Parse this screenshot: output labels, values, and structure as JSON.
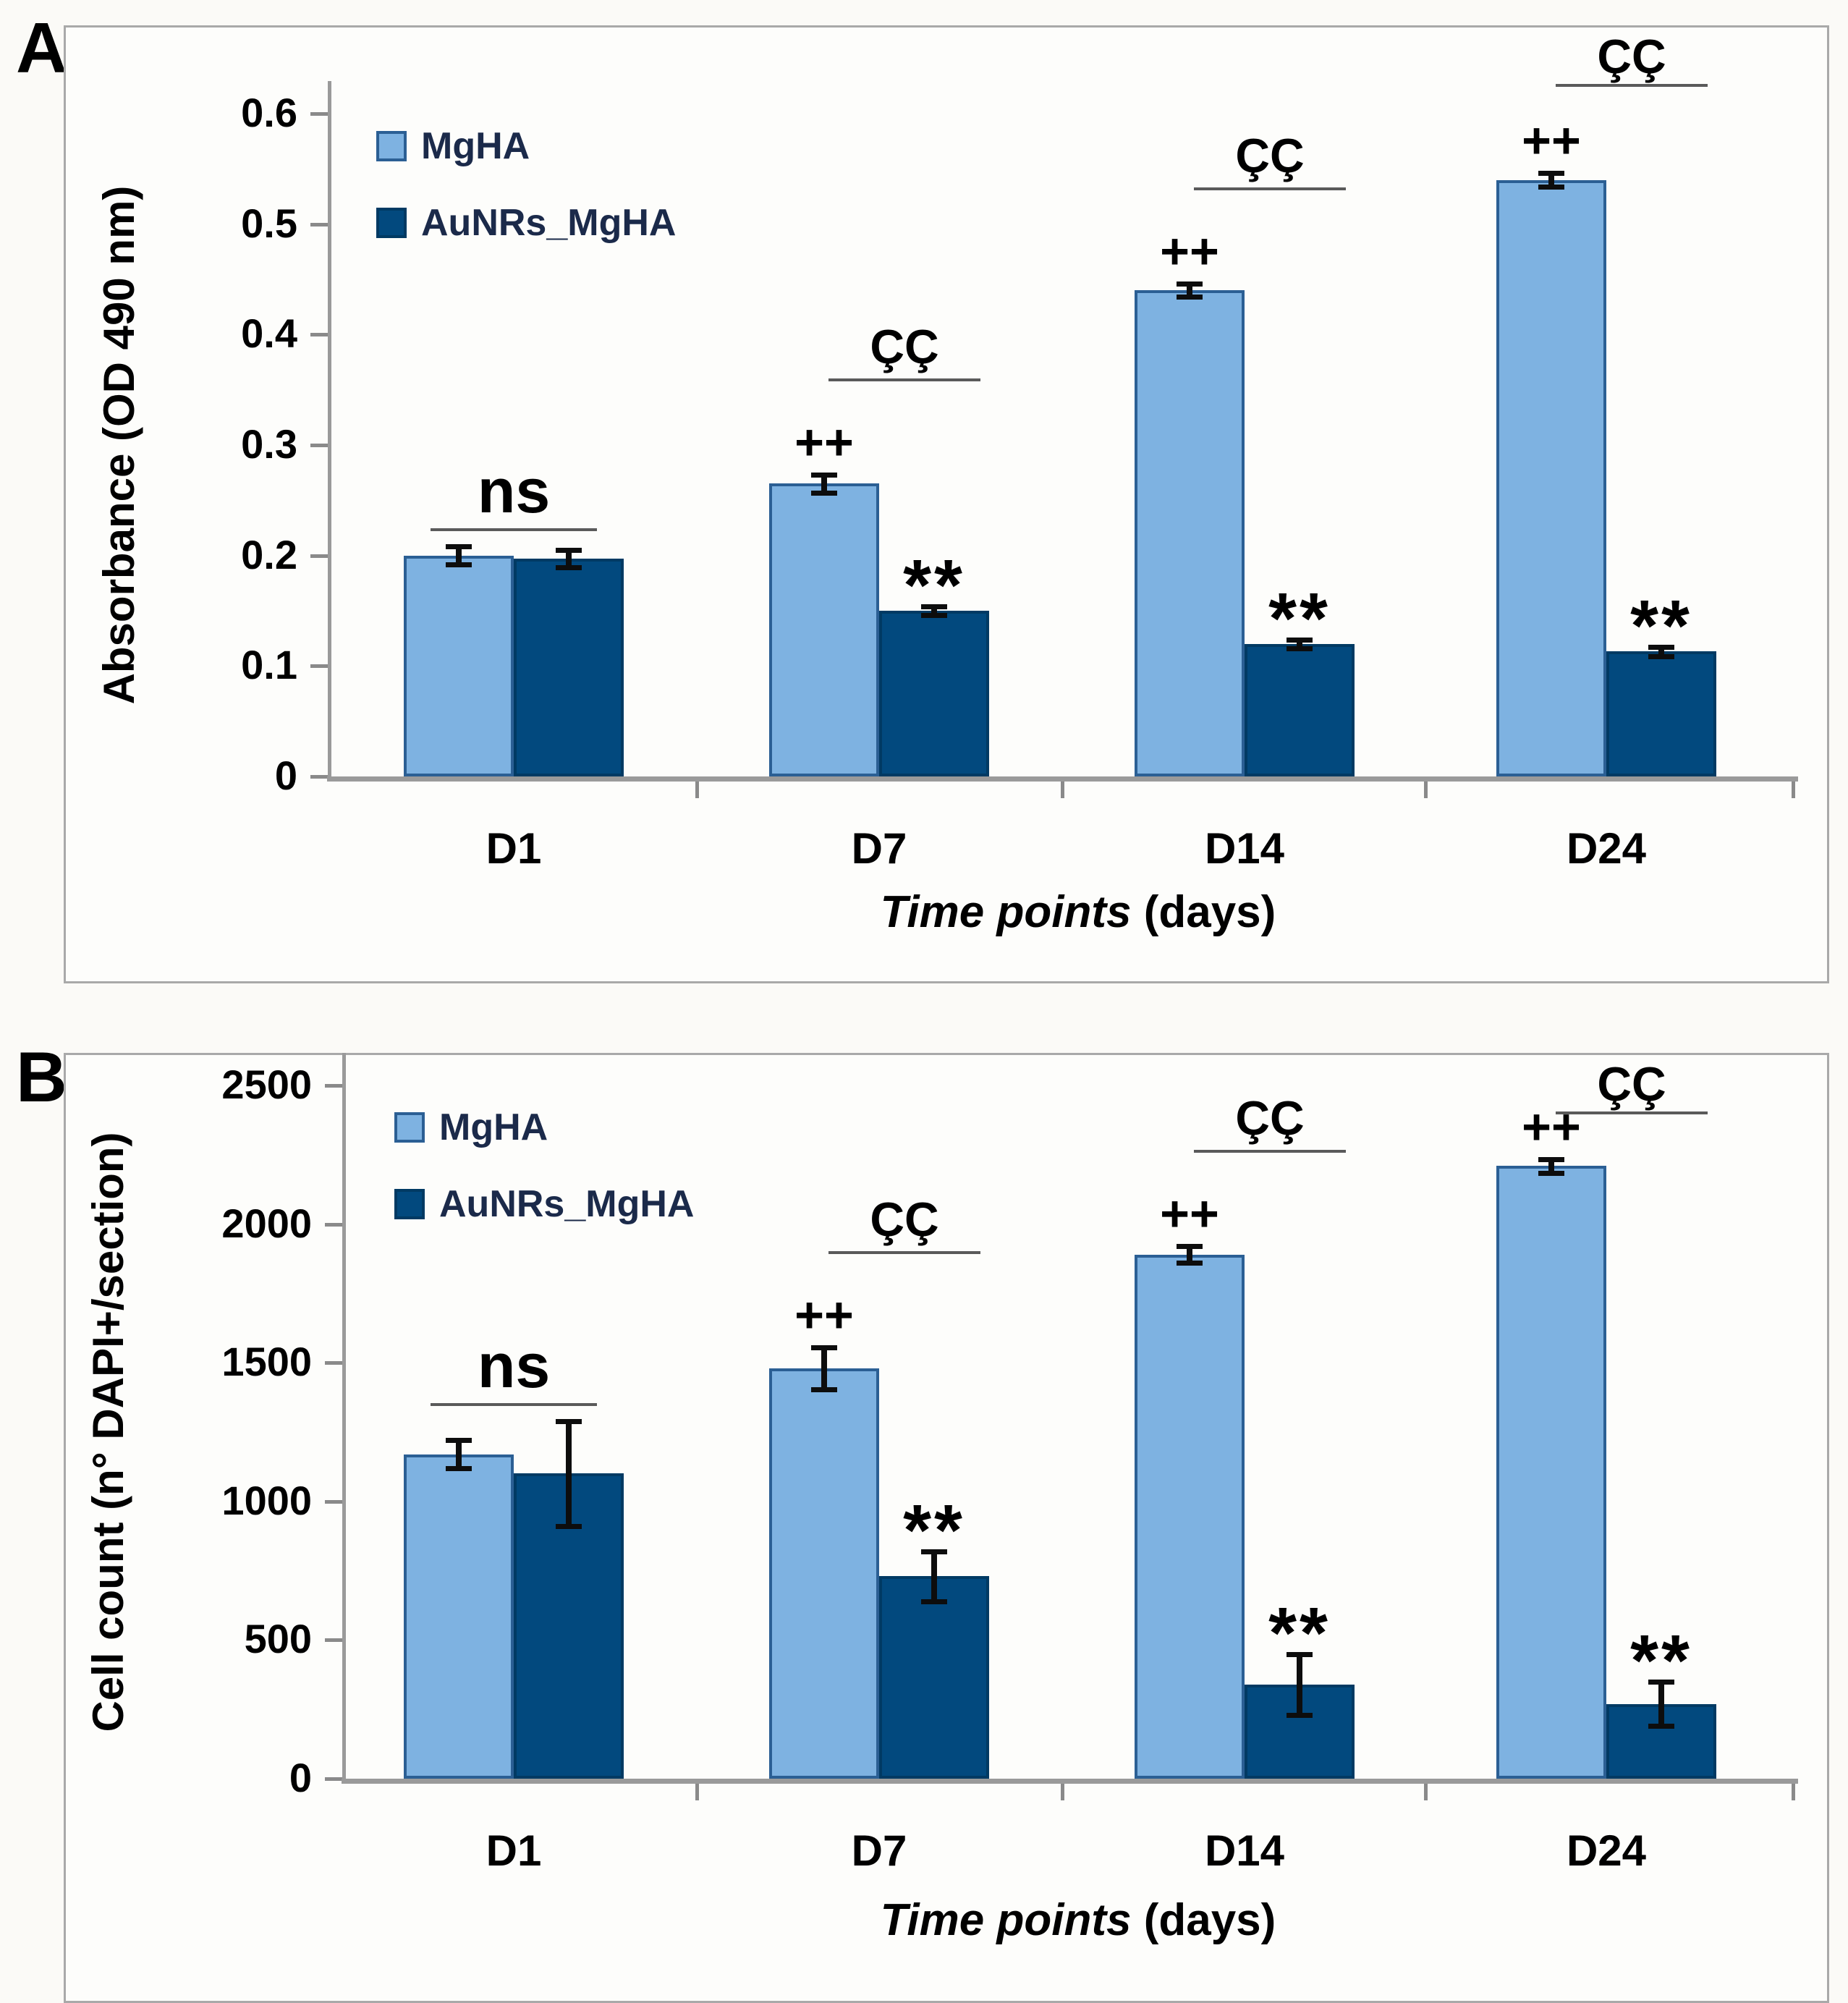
{
  "figure": {
    "panel_a_label": "A",
    "panel_b_label": "B"
  },
  "colors": {
    "series_light_fill": "#7eb2e1",
    "series_light_border": "#2b5f94",
    "series_dark_fill": "#02497e",
    "series_dark_border": "#013a63",
    "axis_gray": "#9a9a9a",
    "frame_gray": "#a9a9a9",
    "text_black": "#000000",
    "legend_text": "#1b2a4a"
  },
  "chart_data": [
    {
      "id": "A",
      "type": "bar",
      "title": "",
      "categories": [
        "D1",
        "D7",
        "D14",
        "D24"
      ],
      "series": [
        {
          "name": "MgHA",
          "values": [
            0.2,
            0.265,
            0.44,
            0.54
          ],
          "errors": [
            0.008,
            0.008,
            0.006,
            0.006
          ]
        },
        {
          "name": "AuNRs_MgHA",
          "values": [
            0.197,
            0.15,
            0.12,
            0.113
          ],
          "errors": [
            0.008,
            0.004,
            0.004,
            0.004
          ]
        }
      ],
      "ylabel": "Absorbance  (OD 490 nm)",
      "xlabel_italic": "Time points",
      "xlabel_regular": " (days)",
      "ylim": [
        0,
        0.6
      ],
      "yticks": [
        "0",
        "0.1",
        "0.2",
        "0.3",
        "0.4",
        "0.5",
        "0.6"
      ],
      "grid": false,
      "legend_position": "top-left-inside",
      "annotations": {
        "ns_label": "ns",
        "ns_categories": [
          "D1"
        ],
        "plus_label": "++",
        "plus_categories": [
          "D7",
          "D14",
          "D24"
        ],
        "star_label": "**",
        "star_categories": [
          "D7",
          "D14",
          "D24"
        ],
        "cc_label": "ÇÇ",
        "cc_categories": [
          "D7",
          "D14",
          "D24"
        ]
      }
    },
    {
      "id": "B",
      "type": "bar",
      "title": "",
      "categories": [
        "D1",
        "D7",
        "D14",
        "D24"
      ],
      "series": [
        {
          "name": "MgHA",
          "values": [
            1170,
            1480,
            1890,
            2210
          ],
          "errors": [
            50,
            75,
            30,
            25
          ]
        },
        {
          "name": "AuNRs_MgHA",
          "values": [
            1100,
            730,
            340,
            270
          ],
          "errors": [
            190,
            90,
            110,
            80
          ]
        }
      ],
      "ylabel": "Cell count (n° DAPI+/section)",
      "xlabel_italic": "Time points",
      "xlabel_regular": " (days)",
      "ylim": [
        0,
        2500
      ],
      "yticks": [
        "0",
        "500",
        "1000",
        "1500",
        "2000",
        "2500"
      ],
      "grid": false,
      "legend_position": "top-left-inside",
      "annotations": {
        "ns_label": "ns",
        "ns_categories": [
          "D1"
        ],
        "plus_label": "++",
        "plus_categories": [
          "D7",
          "D14",
          "D24"
        ],
        "star_label": "**",
        "star_categories": [
          "D7",
          "D14",
          "D24"
        ],
        "cc_label": "ÇÇ",
        "cc_categories": [
          "D7",
          "D14",
          "D24"
        ]
      }
    }
  ]
}
